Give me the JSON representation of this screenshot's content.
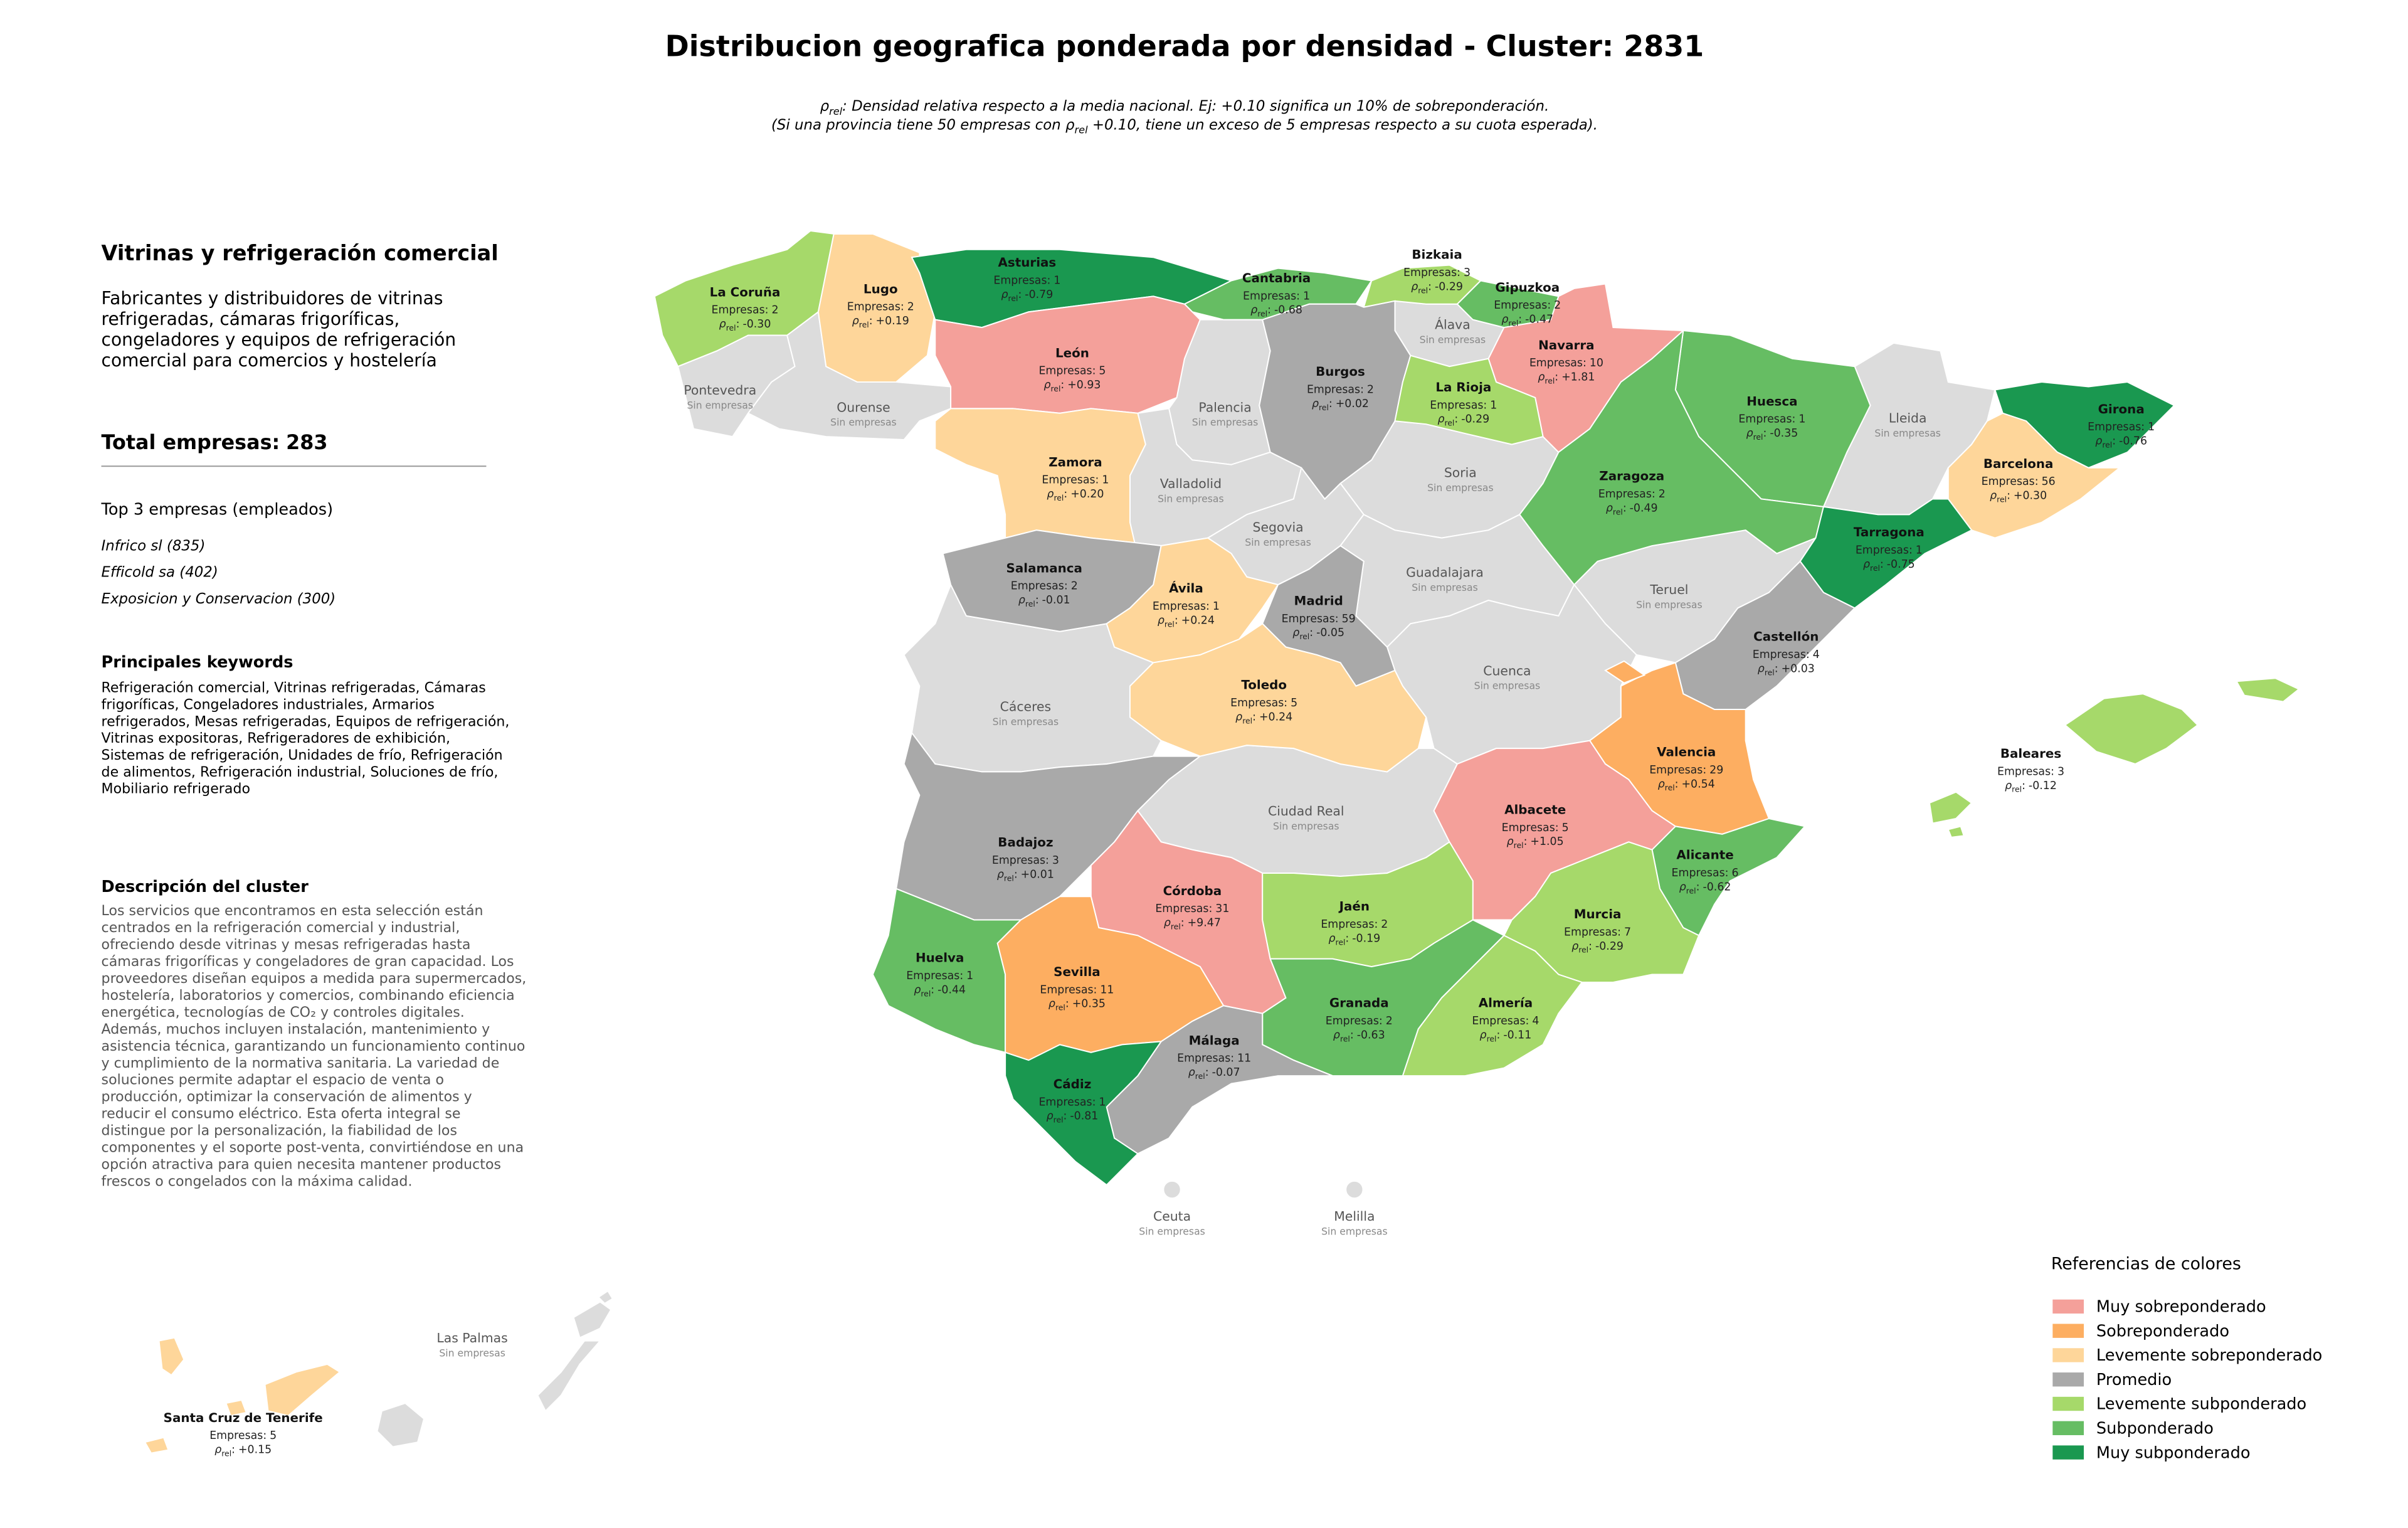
{
  "title": "Distribucion geografica ponderada por densidad - Cluster: 2831",
  "subtitle_lines": [
    [
      {
        "text": "ρ"
      },
      {
        "text": "rel",
        "sub": true
      },
      {
        "text": ": Densidad relativa respecto a la media nacional. Ej: +0.10 significa un 10% de sobreponderación."
      }
    ],
    [
      {
        "text": "(Si una provincia tiene 50 empresas con "
      },
      {
        "text": "ρ"
      },
      {
        "text": "rel",
        "sub": true
      },
      {
        "text": " +0.10, tiene un exceso de 5 empresas respecto a su cuota esperada)."
      }
    ]
  ],
  "panel": {
    "sector": "Vitrinas y refrigeración comercial",
    "sector_description": [
      "Fabricantes y distribuidores de vitrinas",
      "refrigeradas, cámaras frigoríficas,",
      "congeladores y equipos de refrigeración",
      "comercial para comercios y hostelería"
    ],
    "total_label": "Total empresas:",
    "total": 283,
    "top_heading": "Top 3 empresas (empleados)",
    "top": [
      "Infrico sl (835)",
      "Efficold sa (402)",
      "Exposicion y Conservacion (300)"
    ],
    "keywords_heading": "Principales keywords",
    "keywords": [
      "Refrigeración comercial, Vitrinas refrigeradas, Cámaras",
      "frigoríficas, Congeladores industriales, Armarios",
      "refrigerados, Mesas refrigeradas, Equipos de refrigeración,",
      "Vitrinas expositoras, Refrigeradores de exhibición,",
      "Sistemas de refrigeración, Unidades de frío, Refrigeración",
      "de alimentos, Refrigeración industrial, Soluciones de frío,",
      "Mobiliario refrigerado"
    ],
    "description_heading": "Descripción del cluster",
    "description": [
      "Los servicios que encontramos en esta selección están",
      "centrados en la refrigeración comercial y industrial,",
      "ofreciendo desde vitrinas y mesas refrigeradas hasta",
      "cámaras frigoríficas y congeladores de gran capacidad. Los",
      "proveedores diseñan equipos a medida para supermercados,",
      "hostelería, laboratorios y comercios, combinando eficiencia",
      "energética, tecnologías de CO₂ y controles digitales.",
      "Además, muchos incluyen instalación, mantenimiento y",
      "asistencia técnica, garantizando un funcionamiento continuo",
      "y cumplimiento de la normativa sanitaria. La variedad de",
      "soluciones permite adaptar el espacio de venta o",
      "producción, optimizar la conservación de alimentos y",
      "reducir el consumo eléctrico. Esta oferta integral se",
      "distingue por la personalización, la fiabilidad de los",
      "componentes y el soporte post-venta, convirtiéndose en una",
      "opción atractiva para quien necesita mantener productos",
      "frescos o congelados con la máxima calidad."
    ]
  },
  "count_label": "Empresas:",
  "rho_label": {
    "symbol": "ρ",
    "sub": "rel",
    "suffix": ":"
  },
  "empty_label": "Sin empresas",
  "empty_color": "#dcdcdc",
  "provinces": [
    {
      "name": "La Coruña",
      "empresas": 2,
      "rho": "-0.30",
      "color": "#a6d96a"
    },
    {
      "name": "Lugo",
      "empresas": 2,
      "rho": "+0.19",
      "color": "#fed69a"
    },
    {
      "name": "Asturias",
      "empresas": 1,
      "rho": "-0.79",
      "color": "#1a9850"
    },
    {
      "name": "Cantabria",
      "empresas": 1,
      "rho": "-0.68",
      "color": "#66bd63"
    },
    {
      "name": "Bizkaia",
      "empresas": 3,
      "rho": "-0.29",
      "color": "#a6d96a"
    },
    {
      "name": "Gipuzkoa",
      "empresas": 2,
      "rho": "-0.47",
      "color": "#66bd63"
    },
    {
      "name": "Navarra",
      "empresas": 10,
      "rho": "+1.81",
      "color": "#f4a09a"
    },
    {
      "name": "León",
      "empresas": 5,
      "rho": "+0.93",
      "color": "#f4a09a"
    },
    {
      "name": "Burgos",
      "empresas": 2,
      "rho": "+0.02",
      "color": "#a9a9a9"
    },
    {
      "name": "La Rioja",
      "empresas": 1,
      "rho": "-0.29",
      "color": "#a6d96a"
    },
    {
      "name": "Huesca",
      "empresas": 1,
      "rho": "-0.35",
      "color": "#66bd63"
    },
    {
      "name": "Girona",
      "empresas": 1,
      "rho": "-0.76",
      "color": "#1a9850"
    },
    {
      "name": "Barcelona",
      "empresas": 56,
      "rho": "+0.30",
      "color": "#fed69a"
    },
    {
      "name": "Zaragoza",
      "empresas": 2,
      "rho": "-0.49",
      "color": "#66bd63"
    },
    {
      "name": "Zamora",
      "empresas": 1,
      "rho": "+0.20",
      "color": "#fed69a"
    },
    {
      "name": "Tarragona",
      "empresas": 1,
      "rho": "-0.75",
      "color": "#1a9850"
    },
    {
      "name": "Salamanca",
      "empresas": 2,
      "rho": "-0.01",
      "color": "#a9a9a9"
    },
    {
      "name": "Ávila",
      "empresas": 1,
      "rho": "+0.24",
      "color": "#fed69a"
    },
    {
      "name": "Madrid",
      "empresas": 59,
      "rho": "-0.05",
      "color": "#a9a9a9"
    },
    {
      "name": "Castellón",
      "empresas": 4,
      "rho": "+0.03",
      "color": "#a9a9a9"
    },
    {
      "name": "Toledo",
      "empresas": 5,
      "rho": "+0.24",
      "color": "#fed69a"
    },
    {
      "name": "Valencia",
      "empresas": 29,
      "rho": "+0.54",
      "color": "#fdae61"
    },
    {
      "name": "Baleares",
      "empresas": 3,
      "rho": "-0.12",
      "color": "#a6d96a"
    },
    {
      "name": "Badajoz",
      "empresas": 3,
      "rho": "+0.01",
      "color": "#a9a9a9"
    },
    {
      "name": "Albacete",
      "empresas": 5,
      "rho": "+1.05",
      "color": "#f4a09a"
    },
    {
      "name": "Alicante",
      "empresas": 6,
      "rho": "-0.62",
      "color": "#66bd63"
    },
    {
      "name": "Córdoba",
      "empresas": 31,
      "rho": "+9.47",
      "color": "#f4a09a"
    },
    {
      "name": "Jaén",
      "empresas": 2,
      "rho": "-0.19",
      "color": "#a6d96a"
    },
    {
      "name": "Murcia",
      "empresas": 7,
      "rho": "-0.29",
      "color": "#a6d96a"
    },
    {
      "name": "Huelva",
      "empresas": 1,
      "rho": "-0.44",
      "color": "#66bd63"
    },
    {
      "name": "Sevilla",
      "empresas": 11,
      "rho": "+0.35",
      "color": "#fdae61"
    },
    {
      "name": "Granada",
      "empresas": 2,
      "rho": "-0.63",
      "color": "#66bd63"
    },
    {
      "name": "Almería",
      "empresas": 4,
      "rho": "-0.11",
      "color": "#a6d96a"
    },
    {
      "name": "Málaga",
      "empresas": 11,
      "rho": "-0.07",
      "color": "#a9a9a9"
    },
    {
      "name": "Cádiz",
      "empresas": 1,
      "rho": "-0.81",
      "color": "#1a9850"
    },
    {
      "name": "Santa Cruz de Tenerife",
      "empresas": 5,
      "rho": "+0.15",
      "color": "#fed69a"
    }
  ],
  "empty_provinces": [
    "Álava",
    "Pontevedra",
    "Ourense",
    "Palencia",
    "Lleida",
    "Soria",
    "Valladolid",
    "Segovia",
    "Guadalajara",
    "Teruel",
    "Cuenca",
    "Cáceres",
    "Ciudad Real",
    "Ceuta",
    "Melilla",
    "Las Palmas"
  ],
  "legend": {
    "title": "Referencias de colores",
    "items": [
      {
        "label": "Muy sobreponderado",
        "color": "#f4a09a"
      },
      {
        "label": "Sobreponderado",
        "color": "#fdae61"
      },
      {
        "label": "Levemente sobreponderado",
        "color": "#fed69a"
      },
      {
        "label": "Promedio",
        "color": "#a9a9a9"
      },
      {
        "label": "Levemente subponderado",
        "color": "#a6d96a"
      },
      {
        "label": "Subponderado",
        "color": "#66bd63"
      },
      {
        "label": "Muy subponderado",
        "color": "#1a9850"
      }
    ]
  }
}
